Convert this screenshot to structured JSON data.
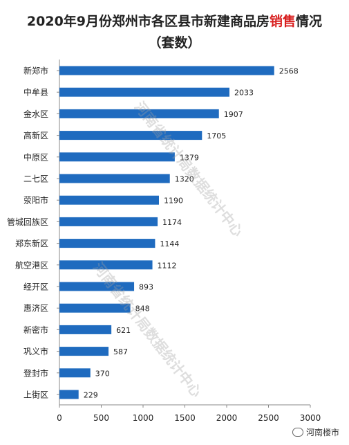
{
  "title_prefix": "2020年9月份郑州市各区县市新建商品房",
  "title_highlight": "销售",
  "title_suffix": "情况",
  "subtitle": "（套数）",
  "watermark_text": "河南省统计局数据统计中心",
  "watermark_logo": "河南楼市",
  "colors": {
    "bar": "#1f6bbf",
    "highlight": "#d81e1e",
    "axis": "#888888"
  },
  "chart_data": {
    "type": "bar",
    "orientation": "horizontal",
    "categories": [
      "新郑市",
      "中牟县",
      "金水区",
      "高新区",
      "中原区",
      "二七区",
      "荥阳市",
      "管城回族区",
      "郑东新区",
      "航空港区",
      "经开区",
      "惠济区",
      "新密市",
      "巩义市",
      "登封市",
      "上街区"
    ],
    "values": [
      2568,
      2033,
      1907,
      1705,
      1379,
      1320,
      1190,
      1174,
      1144,
      1112,
      893,
      848,
      621,
      587,
      370,
      229
    ],
    "xlim": [
      0,
      3000
    ],
    "xticks": [
      0,
      500,
      1000,
      1500,
      2000,
      2500,
      3000
    ],
    "data_labels": true,
    "grid": false
  }
}
